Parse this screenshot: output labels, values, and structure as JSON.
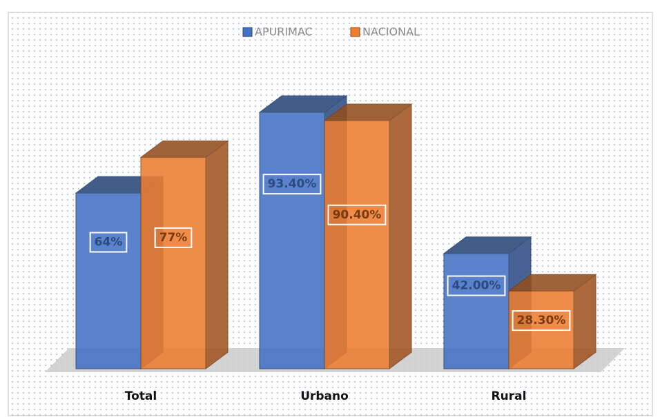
{
  "chart_data": {
    "type": "bar3d",
    "categories": [
      "Total",
      "Urbano",
      "Rural"
    ],
    "series": [
      {
        "name": "APURIMAC",
        "color": "#4472c4",
        "values": [
          64,
          93.4,
          42
        ],
        "value_labels": [
          "64%",
          "93.40%",
          "42.00%"
        ]
      },
      {
        "name": "NACIONAL",
        "color": "#ed7d31",
        "values": [
          77,
          90.4,
          28.3
        ],
        "value_labels": [
          "77%",
          "90.40%",
          "28.30%"
        ]
      }
    ],
    "legend": "top"
  }
}
